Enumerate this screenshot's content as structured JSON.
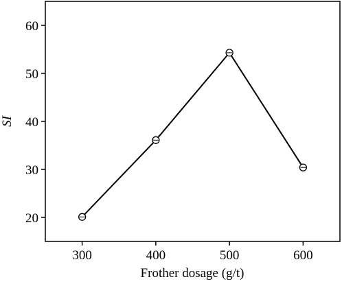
{
  "chart_data": {
    "type": "line",
    "x_label": "Frother dosage (g/t)",
    "y_label": "SI",
    "x": [
      300,
      400,
      500,
      600
    ],
    "series": [
      {
        "name": "SI",
        "color": "#000000",
        "values": [
          20.1,
          36.1,
          54.3,
          30.4
        ]
      }
    ],
    "xlim": [
      250,
      650
    ],
    "xticks": [
      300,
      400,
      500,
      600
    ],
    "ylim": [
      15,
      65
    ],
    "yticks": [
      20,
      30,
      40,
      50,
      60
    ]
  }
}
